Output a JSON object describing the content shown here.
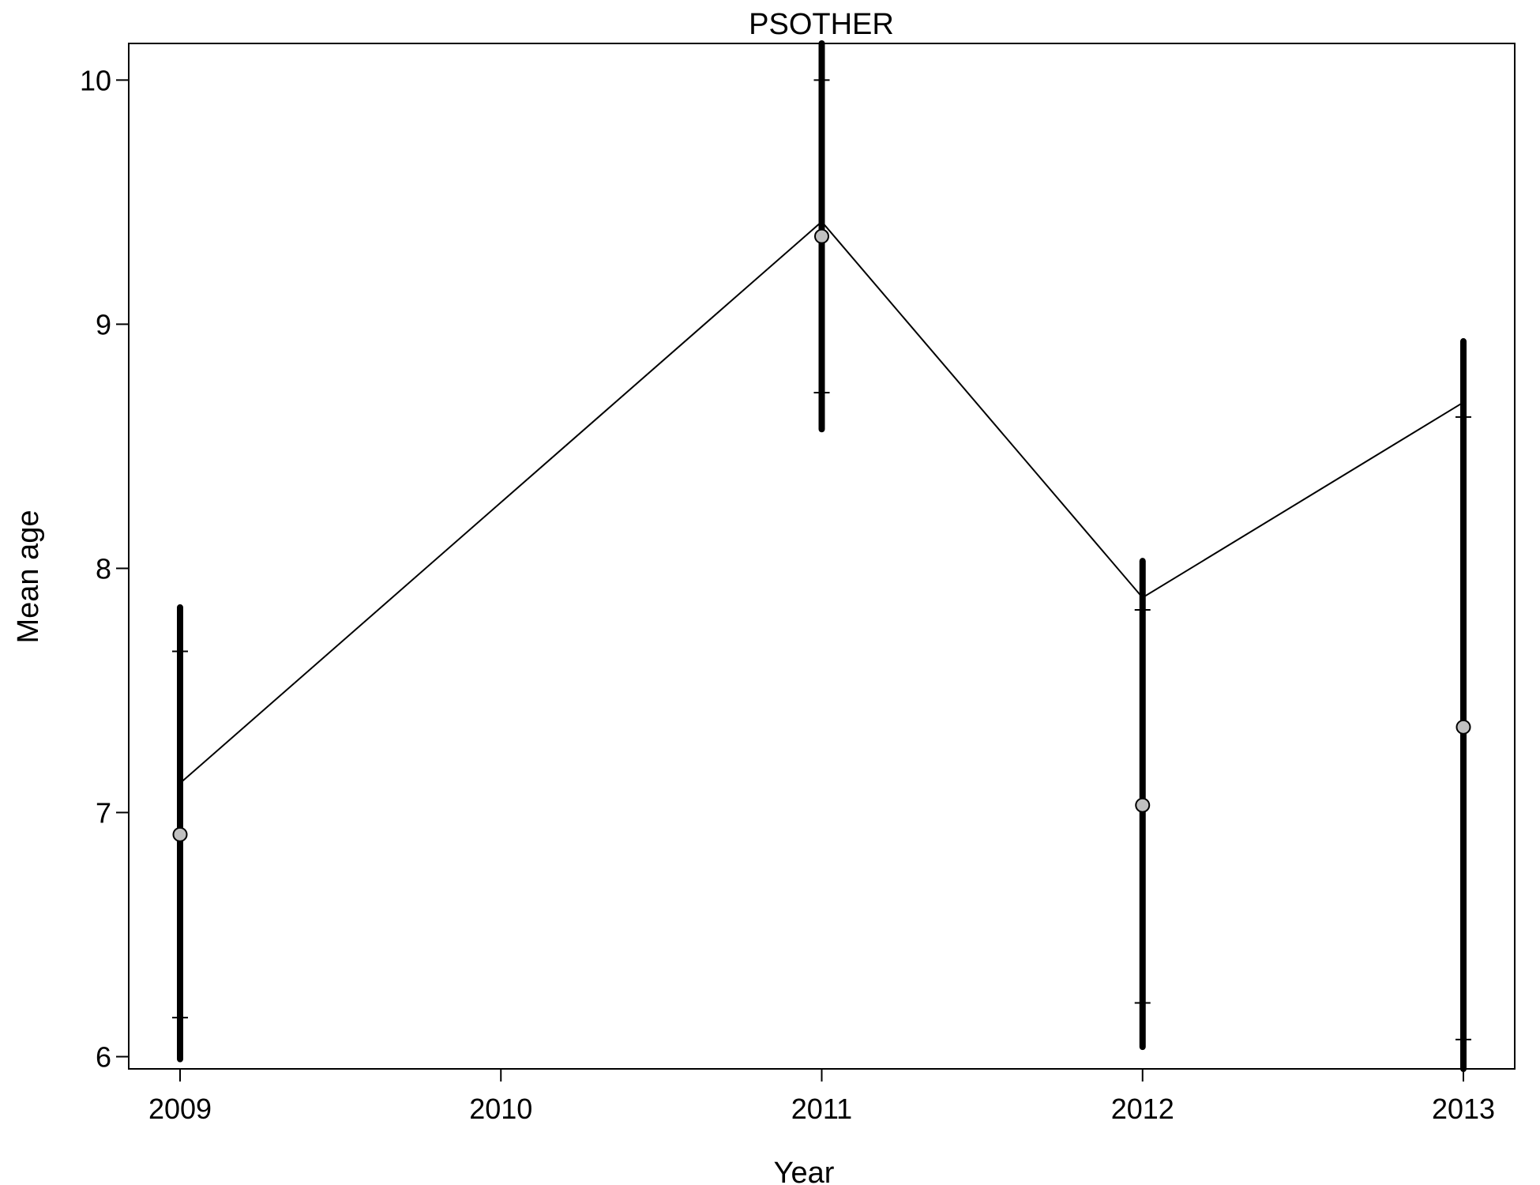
{
  "chart_data": {
    "type": "line",
    "title": "PSOTHER",
    "xlabel": "Year",
    "ylabel": "Mean age",
    "xlim": [
      2008.84,
      2013.16
    ],
    "ylim": [
      5.95,
      10.15
    ],
    "x_ticks": [
      2009,
      2010,
      2011,
      2012,
      2013
    ],
    "y_ticks": [
      6,
      7,
      8,
      9,
      10
    ],
    "grid": false,
    "legend": "none",
    "series": [
      {
        "kind": "line",
        "x": [
          2009,
          2011,
          2012,
          2013
        ],
        "values": [
          7.12,
          9.42,
          7.88,
          8.68
        ]
      },
      {
        "kind": "points-with-intervals",
        "x": [
          2009,
          2011,
          2012,
          2013
        ],
        "values": [
          6.91,
          9.36,
          7.03,
          7.35
        ],
        "outer_low": [
          5.99,
          8.57,
          6.04,
          5.8
        ],
        "outer_high": [
          7.84,
          10.4,
          8.03,
          8.93
        ],
        "inner_low": [
          6.16,
          8.72,
          6.22,
          6.07
        ],
        "inner_high": [
          7.66,
          10.0,
          7.83,
          8.62
        ]
      }
    ],
    "colors": {
      "line": "#000000",
      "point_fill": "#c0c0c0",
      "interval": "#000000"
    }
  }
}
